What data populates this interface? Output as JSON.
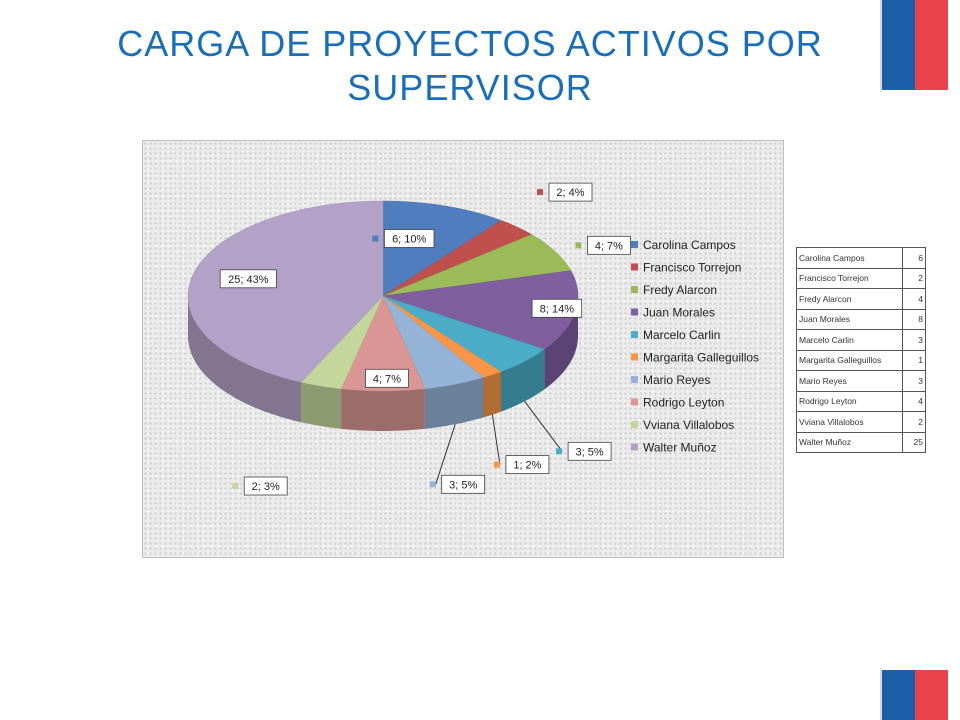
{
  "title": "CARGA DE PROYECTOS ACTIVOS POR SUPERVISOR",
  "chart_data": {
    "type": "pie",
    "title": "",
    "categories": [
      "Carolina Campos",
      "Francisco Torrejon",
      "Fredy Alarcon",
      "Juan Morales",
      "Marcelo Carlin",
      "Margarita Galleguillos",
      "Mario Reyes",
      "Rodrigo Leyton",
      "Vviana Villalobos",
      "Walter Muñoz"
    ],
    "values": [
      6,
      2,
      4,
      8,
      3,
      1,
      3,
      4,
      2,
      25
    ],
    "data_labels": [
      "6; 10%",
      "2; 4%",
      "4; 7%",
      "8; 14%",
      "3; 5%",
      "1; 2%",
      "3; 5%",
      "4; 7%",
      "2; 3%",
      "25; 43%"
    ],
    "colors": [
      "#4f7dbd",
      "#c0504d",
      "#9bbb59",
      "#7f5fa0",
      "#4aacc6",
      "#f79646",
      "#95b3d7",
      "#d99694",
      "#c3d69b",
      "#b3a2c7"
    ],
    "legend_position": "right",
    "style": "3d"
  },
  "table": {
    "rows": [
      {
        "name": "Carolina Campos",
        "value": "6"
      },
      {
        "name": "Francisco Torrejon",
        "value": "2"
      },
      {
        "name": "Fredy Alarcon",
        "value": "4"
      },
      {
        "name": "Juan Morales",
        "value": "8"
      },
      {
        "name": "Marcelo Carlin",
        "value": "3"
      },
      {
        "name": "Margarita Galleguillos",
        "value": "1"
      },
      {
        "name": "Mario Reyes",
        "value": "3"
      },
      {
        "name": "Rodrigo Leyton",
        "value": "4"
      },
      {
        "name": "Vviana Villalobos",
        "value": "2"
      },
      {
        "name": "Walter Muñoz",
        "value": "25"
      }
    ]
  }
}
